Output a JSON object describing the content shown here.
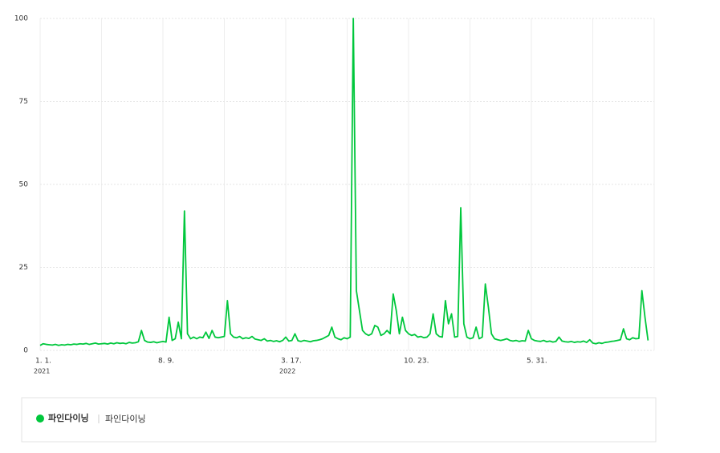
{
  "chart_data": {
    "type": "line",
    "categories": [
      "1. 1.",
      null,
      null,
      null,
      null,
      null,
      null,
      null,
      null,
      null,
      null,
      null,
      null,
      null,
      null,
      null,
      null,
      null,
      null,
      null,
      null,
      null,
      null,
      null,
      null,
      null,
      null,
      null,
      null,
      null,
      null,
      null,
      null,
      null,
      null,
      null,
      null,
      null,
      null,
      null,
      "8. 9.",
      null,
      null,
      null,
      null,
      null,
      null,
      null,
      null,
      null,
      null,
      null,
      null,
      null,
      null,
      null,
      null,
      null,
      null,
      null,
      null,
      null,
      null,
      null,
      null,
      null,
      null,
      null,
      null,
      null,
      null,
      null,
      null,
      null,
      null,
      null,
      null,
      null,
      null,
      null,
      "3. 17.",
      null,
      null,
      null,
      null,
      null,
      null,
      null,
      null,
      null,
      null,
      null,
      null,
      null,
      null,
      null,
      null,
      null,
      null,
      null,
      null,
      null,
      null,
      null,
      null,
      null,
      null,
      null,
      null,
      null,
      null,
      null,
      null,
      null,
      null,
      null,
      null,
      null,
      null,
      null,
      "10. 23.",
      null,
      null,
      null,
      null,
      null,
      null,
      null,
      null,
      null,
      null,
      null,
      null,
      null,
      null,
      null,
      null,
      null,
      null,
      null,
      null,
      null,
      null,
      null,
      null,
      null,
      null,
      null,
      null,
      null,
      null,
      null,
      null,
      null,
      null,
      null,
      null,
      null,
      null,
      null,
      "5. 31.",
      null,
      null,
      null,
      null,
      null,
      null,
      null,
      null,
      null,
      null,
      null,
      null,
      null,
      null,
      null,
      null,
      null,
      null,
      null,
      null,
      null,
      null,
      null,
      null,
      null,
      null,
      null,
      null,
      null,
      null,
      null,
      null,
      null,
      null,
      null,
      null,
      null,
      null
    ],
    "year_labels": [
      {
        "category": "1. 1.",
        "label": "2021"
      },
      {
        "category": "3. 17.",
        "label": "2022"
      }
    ],
    "series": [
      {
        "name": "파인다이닝",
        "label": "파인다이닝",
        "color": "#00c73c",
        "values": [
          1.5,
          2,
          1.8,
          1.7,
          1.6,
          1.8,
          1.5,
          1.7,
          1.6,
          1.8,
          1.7,
          1.9,
          1.8,
          2,
          1.9,
          2.1,
          1.8,
          2,
          2.2,
          1.9,
          2,
          2.1,
          1.9,
          2.2,
          2,
          2.3,
          2.1,
          2.2,
          2,
          2.4,
          2.2,
          2.3,
          2.6,
          6,
          3,
          2.5,
          2.4,
          2.6,
          2.3,
          2.5,
          2.7,
          2.5,
          10,
          3,
          3.5,
          8.5,
          3.5,
          42,
          5,
          3.5,
          4,
          3.5,
          4,
          3.8,
          5.5,
          3.6,
          6,
          4,
          3.8,
          4,
          4.2,
          15,
          5,
          4,
          3.8,
          4.2,
          3.5,
          3.8,
          3.6,
          4.2,
          3.4,
          3.2,
          3,
          3.5,
          2.8,
          3,
          2.7,
          2.9,
          2.6,
          3,
          4,
          2.8,
          3,
          5,
          2.9,
          2.7,
          3,
          2.8,
          2.6,
          2.9,
          3,
          3.2,
          3.5,
          4,
          4.5,
          7,
          4,
          3.5,
          3.2,
          3.8,
          3.5,
          4,
          100,
          18,
          12,
          6,
          5,
          4.5,
          5,
          7.5,
          7,
          4.5,
          5,
          6,
          5,
          17,
          12,
          5,
          10,
          6,
          5,
          4.5,
          4.8,
          4,
          4.2,
          3.8,
          4,
          5,
          11,
          5,
          4.2,
          4,
          15,
          8,
          11,
          4,
          4.2,
          43,
          8,
          4,
          3.5,
          3.8,
          7,
          3.5,
          4,
          20,
          13,
          5,
          3.5,
          3.2,
          3,
          3.2,
          3.5,
          3,
          2.8,
          3,
          2.7,
          2.9,
          2.8,
          6,
          3.5,
          3,
          2.8,
          2.7,
          3,
          2.6,
          2.8,
          2.5,
          2.7,
          4,
          2.8,
          2.6,
          2.5,
          2.7,
          2.4,
          2.6,
          2.5,
          2.8,
          2.4,
          3.2,
          2.2,
          2,
          2.3,
          2.1,
          2.4,
          2.5,
          2.7,
          2.8,
          3,
          3.2,
          6.5,
          3.5,
          3.2,
          3.8,
          3.5,
          3.6,
          18,
          10,
          3
        ]
      }
    ],
    "ylim": [
      0,
      100
    ],
    "yticks": [
      0,
      25,
      50,
      75,
      100
    ],
    "grid": true
  }
}
